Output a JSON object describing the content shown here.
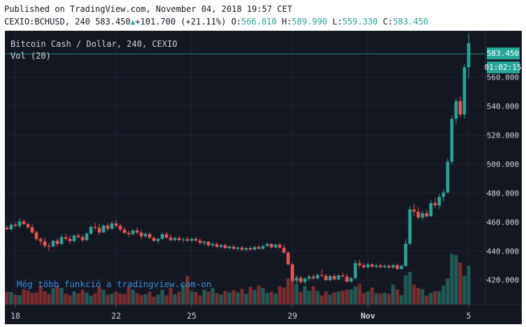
{
  "header": {
    "published": "Published on TradingView.com, November 04, 2018 19:57 CET",
    "symbol": "CEXIO:BCHUSD, 240",
    "last": "583.450",
    "change": "+101.700",
    "change_pct": "(+21.11%)",
    "o_label": "O:",
    "o_value": "566.810",
    "h_label": "H:",
    "h_value": "589.990",
    "l_label": "L:",
    "l_value": "559.330",
    "c_label": "C:",
    "c_value": "583.450"
  },
  "overlay": {
    "title": "Bitcoin Cash / Dollar, 240, CEXIO",
    "volume_label": "Vol (20)",
    "watermark": "Még több funkció a tradingview.com-on",
    "price_tag": "583.450",
    "countdown": "01:02:15"
  },
  "colors": {
    "background": "#131722",
    "up": "#26a69a",
    "down": "#ef5350",
    "up_volume": "#1e5c57",
    "down_volume": "#7c2c2f",
    "grid": "#1f2536",
    "axis_text": "#d1d4dc"
  },
  "chart_data": {
    "type": "candlestick",
    "title": "Bitcoin Cash / Dollar, 240, CEXIO",
    "y_axis_side": "right",
    "ylim": [
      403,
      592
    ],
    "y_ticks": [
      420,
      440,
      460,
      480,
      500,
      520,
      540,
      560
    ],
    "y_tick_labels": [
      "420.000",
      "440.000",
      "460.000",
      "480.000",
      "500.000",
      "520.000",
      "540.000",
      "560.000"
    ],
    "x_tick_labels": [
      "18",
      "22",
      "25",
      "29",
      "Nov",
      "5"
    ],
    "x_tick_index": [
      2,
      26,
      44,
      68,
      86,
      110
    ],
    "x_index_range": [
      0,
      112
    ],
    "grid": true,
    "ohlc": [
      [
        456.1,
        457.5,
        454.3,
        455.0
      ],
      [
        455.0,
        459.2,
        454.0,
        458.2
      ],
      [
        458.2,
        460.0,
        456.5,
        457.3
      ],
      [
        457.3,
        462.8,
        455.8,
        460.5
      ],
      [
        460.5,
        462.0,
        458.0,
        458.6
      ],
      [
        458.6,
        459.5,
        455.5,
        456.4
      ],
      [
        456.4,
        458.5,
        452.0,
        452.8
      ],
      [
        452.8,
        454.2,
        447.0,
        448.3
      ],
      [
        448.3,
        449.5,
        444.2,
        446.7
      ],
      [
        446.7,
        449.4,
        442.1,
        443.6
      ],
      [
        443.6,
        445.5,
        440.2,
        443.1
      ],
      [
        443.1,
        448.0,
        442.8,
        447.1
      ],
      [
        447.1,
        448.8,
        443.2,
        444.8
      ],
      [
        444.8,
        451.4,
        444.3,
        449.6
      ],
      [
        449.6,
        452.1,
        447.4,
        448.5
      ],
      [
        448.5,
        450.9,
        445.0,
        446.9
      ],
      [
        446.9,
        451.5,
        446.1,
        450.7
      ],
      [
        450.7,
        452.4,
        448.7,
        449.6
      ],
      [
        449.6,
        451.1,
        446.1,
        447.5
      ],
      [
        447.5,
        452.8,
        447.0,
        452.0
      ],
      [
        452.0,
        458.0,
        451.2,
        456.6
      ],
      [
        456.6,
        459.4,
        454.8,
        456.0
      ],
      [
        456.0,
        458.7,
        451.3,
        452.8
      ],
      [
        452.8,
        458.4,
        452.6,
        457.6
      ],
      [
        457.6,
        459.2,
        454.0,
        455.3
      ],
      [
        455.3,
        460.7,
        454.9,
        459.1
      ],
      [
        459.1,
        461.3,
        456.3,
        457.4
      ],
      [
        457.4,
        459.0,
        453.5,
        454.8
      ],
      [
        454.8,
        456.4,
        451.7,
        452.5
      ],
      [
        452.5,
        454.1,
        449.8,
        451.6
      ],
      [
        451.6,
        455.2,
        450.9,
        454.2
      ],
      [
        454.2,
        456.0,
        451.7,
        452.7
      ],
      [
        452.7,
        454.4,
        447.9,
        450.1
      ],
      [
        450.1,
        453.0,
        449.1,
        451.8
      ],
      [
        451.8,
        453.3,
        448.5,
        449.1
      ],
      [
        449.1,
        450.2,
        446.4,
        447.0
      ],
      [
        447.0,
        449.1,
        445.3,
        448.4
      ],
      [
        448.4,
        452.7,
        447.9,
        451.6
      ],
      [
        451.6,
        453.1,
        448.6,
        449.3
      ],
      [
        449.3,
        451.5,
        446.6,
        447.5
      ],
      [
        447.5,
        449.9,
        446.8,
        448.9
      ],
      [
        448.9,
        450.3,
        446.5,
        447.6
      ],
      [
        447.6,
        449.2,
        445.9,
        448.1
      ],
      [
        448.1,
        450.1,
        446.3,
        447.1
      ],
      [
        447.1,
        449.4,
        446.2,
        448.4
      ],
      [
        448.4,
        449.6,
        446.7,
        447.2
      ],
      [
        447.2,
        448.5,
        444.3,
        445.6
      ],
      [
        445.6,
        447.2,
        443.6,
        446.4
      ],
      [
        446.4,
        447.1,
        443.0,
        443.9
      ],
      [
        443.9,
        446.1,
        442.6,
        444.8
      ],
      [
        444.8,
        445.8,
        442.1,
        442.9
      ],
      [
        442.9,
        445.0,
        441.6,
        444.1
      ],
      [
        444.1,
        444.9,
        441.3,
        442.0
      ],
      [
        442.0,
        443.9,
        440.8,
        443.0
      ],
      [
        443.0,
        444.4,
        441.0,
        441.5
      ],
      [
        441.5,
        443.0,
        440.3,
        442.4
      ],
      [
        442.4,
        443.6,
        440.2,
        440.9
      ],
      [
        440.9,
        442.7,
        439.8,
        442.0
      ],
      [
        442.0,
        443.3,
        440.3,
        441.0
      ],
      [
        441.0,
        443.5,
        440.5,
        442.8
      ],
      [
        442.8,
        444.1,
        441.1,
        441.6
      ],
      [
        441.6,
        444.3,
        441.0,
        443.4
      ],
      [
        443.4,
        446.0,
        442.8,
        444.9
      ],
      [
        444.9,
        445.5,
        441.9,
        442.5
      ],
      [
        442.5,
        445.1,
        442.0,
        444.4
      ],
      [
        444.4,
        445.6,
        441.6,
        442.3
      ],
      [
        442.3,
        444.5,
        438.2,
        438.9
      ],
      [
        438.9,
        439.6,
        430.1,
        430.8
      ],
      [
        430.8,
        432.4,
        418.4,
        419.5
      ],
      [
        419.5,
        423.3,
        417.3,
        421.6
      ],
      [
        421.6,
        423.0,
        417.5,
        418.7
      ],
      [
        418.7,
        421.9,
        417.2,
        420.9
      ],
      [
        420.9,
        423.7,
        419.4,
        422.4
      ],
      [
        422.4,
        423.8,
        420.1,
        421.2
      ],
      [
        421.2,
        424.6,
        420.5,
        423.4
      ],
      [
        423.4,
        427.1,
        422.2,
        422.9
      ],
      [
        422.9,
        424.3,
        419.3,
        419.9
      ],
      [
        419.9,
        423.6,
        419.1,
        422.7
      ],
      [
        422.7,
        424.4,
        419.9,
        420.5
      ],
      [
        420.5,
        424.0,
        419.8,
        423.1
      ],
      [
        423.1,
        425.3,
        422.0,
        422.4
      ],
      [
        422.4,
        424.1,
        418.1,
        418.9
      ],
      [
        418.9,
        422.0,
        418.1,
        421.3
      ],
      [
        421.3,
        433.6,
        420.3,
        431.6
      ],
      [
        431.6,
        434.1,
        428.3,
        430.1
      ],
      [
        430.1,
        431.6,
        427.7,
        428.8
      ],
      [
        428.8,
        431.9,
        427.9,
        430.8
      ],
      [
        430.8,
        431.7,
        428.2,
        429.2
      ],
      [
        429.2,
        431.1,
        428.1,
        430.0
      ],
      [
        430.0,
        431.4,
        428.2,
        428.9
      ],
      [
        428.9,
        430.9,
        428.0,
        429.7
      ],
      [
        429.7,
        431.2,
        427.9,
        428.6
      ],
      [
        428.6,
        431.0,
        427.8,
        430.2
      ],
      [
        430.2,
        431.5,
        426.9,
        427.6
      ],
      [
        427.6,
        430.6,
        427.0,
        429.7
      ],
      [
        429.7,
        448.2,
        428.9,
        445.0
      ],
      [
        445.0,
        471.3,
        443.9,
        468.7
      ],
      [
        468.7,
        472.6,
        464.1,
        467.2
      ],
      [
        467.2,
        470.3,
        462.0,
        463.1
      ],
      [
        463.1,
        467.9,
        461.6,
        466.1
      ],
      [
        466.1,
        468.3,
        462.8,
        464.0
      ],
      [
        464.0,
        475.2,
        463.7,
        473.1
      ],
      [
        473.1,
        476.4,
        469.7,
        471.5
      ],
      [
        471.5,
        479.5,
        469.1,
        477.3
      ],
      [
        477.3,
        482.3,
        474.1,
        480.4
      ],
      [
        480.4,
        504.1,
        479.6,
        501.7
      ],
      [
        501.7,
        533.6,
        499.8,
        531.2
      ],
      [
        531.2,
        545.4,
        527.7,
        543.4
      ],
      [
        543.4,
        546.6,
        532.3,
        534.2
      ],
      [
        534.2,
        568.9,
        531.4,
        566.8
      ],
      [
        566.8,
        589.99,
        559.33,
        583.45
      ]
    ],
    "volume": [
      15.7,
      15.3,
      12.1,
      11.5,
      18.8,
      17.2,
      14.3,
      14.9,
      23.0,
      16.3,
      13.1,
      20.1,
      23.0,
      20.3,
      13.4,
      11.3,
      16.2,
      13.6,
      18.1,
      14.6,
      11.0,
      13.7,
      21.7,
      17.8,
      12.2,
      13.3,
      15.8,
      13.4,
      12.9,
      21.9,
      18.1,
      14.1,
      11.7,
      12.8,
      15.7,
      9.5,
      12.2,
      17.8,
      11.2,
      20.2,
      12.6,
      15.7,
      24.9,
      35.0,
      16.3,
      15.4,
      11.1,
      18.2,
      16.1,
      20.1,
      14.1,
      12.0,
      16.7,
      14.9,
      17.7,
      14.9,
      19.1,
      13.3,
      21.7,
      17.6,
      23.5,
      20.4,
      14.2,
      15.7,
      13.6,
      22.6,
      20.6,
      31.9,
      42.3,
      24.7,
      15.7,
      22.7,
      16.8,
      22.4,
      16.7,
      11.4,
      15.9,
      12.0,
      14.8,
      15.8,
      16.8,
      18.2,
      18.6,
      22.1,
      25.3,
      13.9,
      15.9,
      20.7,
      13.9,
      13.6,
      14.5,
      13.4,
      24.4,
      18.7,
      11.5,
      35.6,
      40.0,
      24.3,
      20.3,
      18.8,
      11.1,
      14.5,
      16.3,
      16.3,
      23.3,
      32.2,
      62.0,
      60.5,
      51.2,
      35.2,
      47.2
    ],
    "volume_max": 85
  }
}
